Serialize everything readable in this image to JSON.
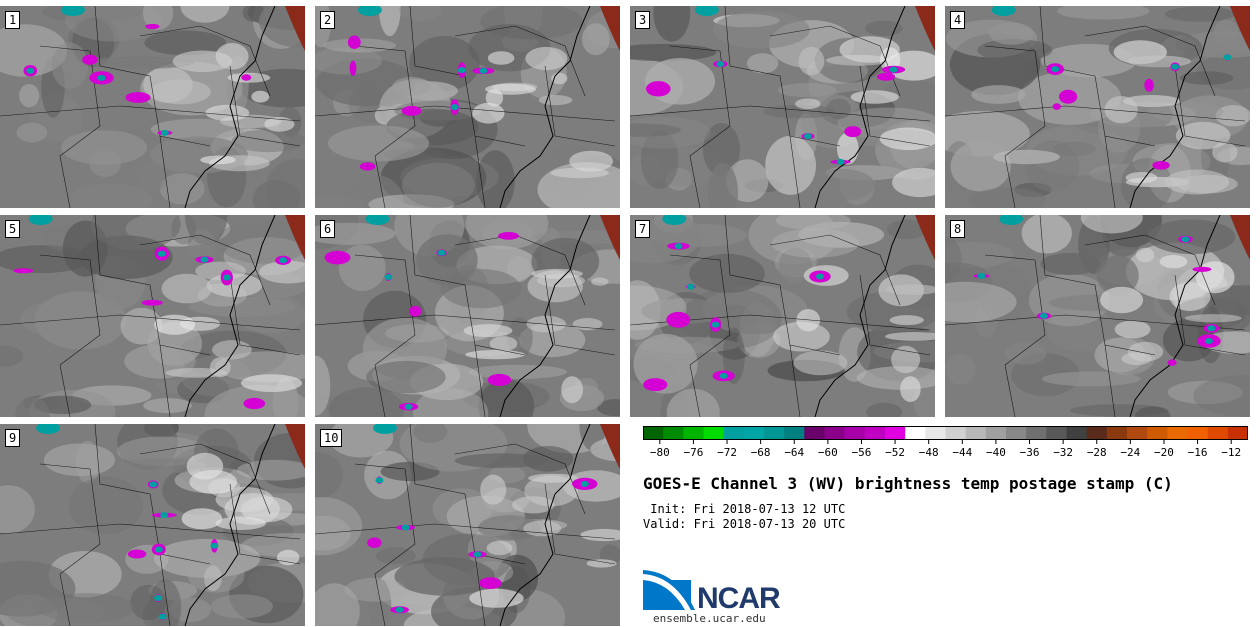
{
  "panels": [
    {
      "label": "1"
    },
    {
      "label": "2"
    },
    {
      "label": "3"
    },
    {
      "label": "4"
    },
    {
      "label": "5"
    },
    {
      "label": "6"
    },
    {
      "label": "7"
    },
    {
      "label": "8"
    },
    {
      "label": "9"
    },
    {
      "label": "10"
    }
  ],
  "colorbar": {
    "tick_labels": [
      "−80",
      "−76",
      "−72",
      "−68",
      "−64",
      "−60",
      "−56",
      "−52",
      "−48",
      "−44",
      "−40",
      "−36",
      "−32",
      "−28",
      "−24",
      "−20",
      "−16",
      "−12"
    ],
    "colors": [
      "#006400",
      "#008c00",
      "#00b400",
      "#00dc00",
      "#009fa0",
      "#00a5a5",
      "#009696",
      "#008080",
      "#6a006a",
      "#8a008a",
      "#a800a8",
      "#c000c0",
      "#e000e0",
      "#ffffff",
      "#e8e8e8",
      "#d0d0d0",
      "#b8b8b8",
      "#a0a0a0",
      "#888888",
      "#707070",
      "#585858",
      "#404040",
      "#5a2a1a",
      "#8b3a10",
      "#b04a10",
      "#d05a00",
      "#e86a00",
      "#f06000",
      "#e04a00",
      "#c83000"
    ]
  },
  "title": "GOES-E Channel 3 (WV) brightness temp postage stamp (C)",
  "init": " Init: Fri 2018-07-13 12 UTC",
  "valid": "Valid: Fri 2018-07-13 20 UTC",
  "logo": {
    "text": "NCAR",
    "url": "ensemble.ucar.edu"
  },
  "colors": {
    "background_gray": "#7a7a7a",
    "convective_magenta": "#d400d4",
    "convective_teal": "#00a0a0",
    "ocean_edge": "#8b2a1a"
  }
}
